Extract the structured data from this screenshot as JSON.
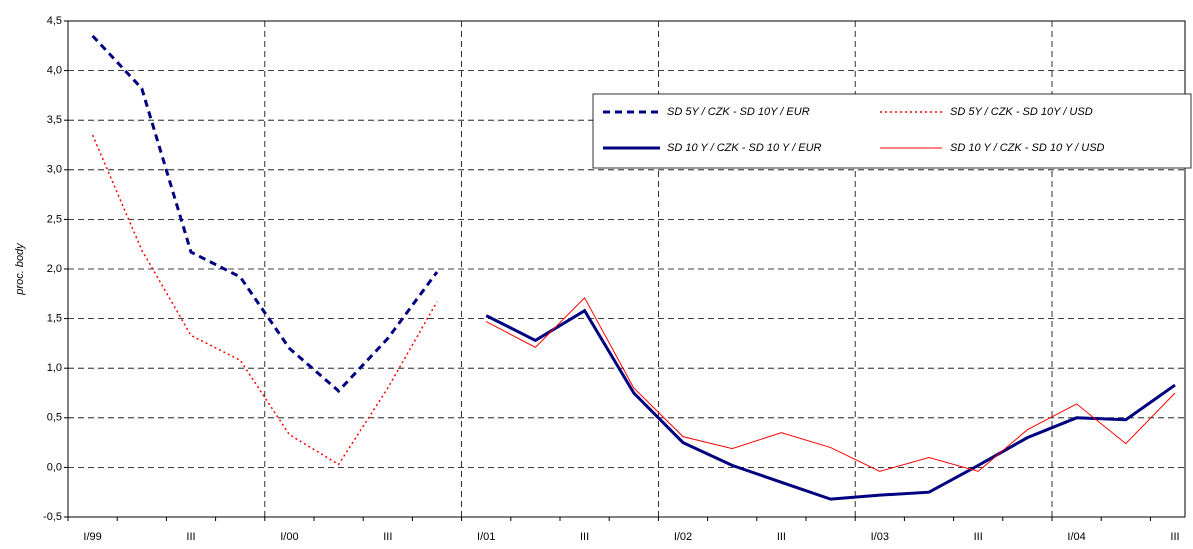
{
  "chart_data": {
    "type": "line",
    "y_label": "proc. body",
    "categories": [
      "I/99",
      null,
      "III",
      null,
      "I/00",
      null,
      "III",
      null,
      "I/01",
      null,
      "III",
      null,
      "I/02",
      null,
      "III",
      null,
      "I/03",
      null,
      "III",
      null,
      "I/04",
      null,
      "III"
    ],
    "ylim": [
      -0.5,
      4.5
    ],
    "yticks": [
      {
        "value": -0.5,
        "label": "-0,5"
      },
      {
        "value": 0,
        "label": "0,0"
      },
      {
        "value": 0.5,
        "label": "0,5"
      },
      {
        "value": 1,
        "label": "1,0"
      },
      {
        "value": 1.5,
        "label": "1,5"
      },
      {
        "value": 2,
        "label": "2,0"
      },
      {
        "value": 2.5,
        "label": "2,5"
      },
      {
        "value": 3,
        "label": "3,0"
      },
      {
        "value": 3.5,
        "label": "3,5"
      },
      {
        "value": 4,
        "label": "4,0"
      },
      {
        "value": 4.5,
        "label": "4,5"
      }
    ],
    "grid": true,
    "legend": "upper right",
    "series": [
      {
        "name": "SD 5Y / CZK - SD 10Y / EUR",
        "color": "#000080",
        "style": "dashed",
        "width": 3,
        "values": [
          4.35,
          3.82,
          2.17,
          1.92,
          1.2,
          0.77,
          1.3,
          1.97,
          null,
          null,
          null,
          null,
          null,
          null,
          null,
          null,
          null,
          null,
          null,
          null,
          null,
          null,
          null
        ]
      },
      {
        "name": "SD 5Y / CZK - SD 10Y / USD",
        "color": "#ff0000",
        "style": "dotted",
        "width": 1.5,
        "values": [
          3.35,
          2.19,
          1.33,
          1.08,
          0.33,
          0.03,
          0.8,
          1.67,
          null,
          null,
          null,
          null,
          null,
          null,
          null,
          null,
          null,
          null,
          null,
          null,
          null,
          null,
          null
        ]
      },
      {
        "name": "SD 10 Y / CZK - SD 10 Y / EUR",
        "color": "#000080",
        "style": "solid",
        "width": 3,
        "values": [
          null,
          null,
          null,
          null,
          null,
          null,
          null,
          null,
          1.53,
          1.28,
          1.58,
          0.75,
          0.25,
          0.02,
          -0.15,
          -0.32,
          -0.28,
          -0.25,
          0.02,
          0.3,
          0.5,
          0.48,
          0.83
        ]
      },
      {
        "name": "SD 10 Y / CZK - SD 10 Y / USD",
        "color": "#ff0000",
        "style": "solid",
        "width": 1,
        "values": [
          null,
          null,
          null,
          null,
          null,
          null,
          null,
          null,
          1.47,
          1.21,
          1.71,
          0.8,
          0.31,
          0.19,
          0.35,
          0.2,
          -0.04,
          0.1,
          -0.04,
          0.38,
          0.64,
          0.24,
          0.75
        ]
      }
    ]
  }
}
